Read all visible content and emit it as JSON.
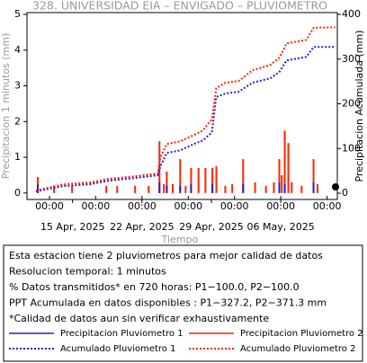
{
  "chart_data": {
    "type": "combo",
    "title": "328. UNIVERSIDAD EIA – ENVIGADO – PLUVIOMETRO",
    "xlabel": "Tiempo",
    "ylabel": "Precipitacion 1 minutos (mm)",
    "y2label": "Precipitacion Acumulada (mm)",
    "xlim": [
      10.4,
      41.7
    ],
    "ylim": [
      -0.18,
      5.05
    ],
    "y2lim": [
      -14,
      404
    ],
    "yticks": [
      0,
      1,
      2,
      3,
      4,
      5
    ],
    "y2ticks": [
      0,
      100,
      200,
      300,
      400
    ],
    "xticks": [
      {
        "value": 12.67,
        "label": "00:00"
      },
      {
        "value": 17.33,
        "label": "00:00"
      },
      {
        "value": 22,
        "label": "00:00"
      },
      {
        "value": 26.67,
        "label": "00:00"
      },
      {
        "value": 31.33,
        "label": "00:00"
      },
      {
        "value": 36,
        "label": "00:00"
      },
      {
        "value": 40.67,
        "label": "00:00"
      }
    ],
    "xticks_major": [
      {
        "value": 15,
        "label": "15 Apr, 2025"
      },
      {
        "value": 22,
        "label": "22 Apr, 2025"
      },
      {
        "value": 29,
        "label": "29 Apr, 2025"
      },
      {
        "value": 36,
        "label": "06 May, 2025"
      }
    ],
    "series": [
      {
        "name": "Precipitacion Pluviometro 2",
        "kind": "bar",
        "color": "#ff2200",
        "x": [
          11.49,
          13.13,
          14.95,
          18.4,
          19.5,
          21.3,
          22.67,
          23.76,
          24.2,
          24.5,
          25.1,
          25.85,
          26.4,
          26.95,
          27.7,
          28.4,
          29.1,
          29.5,
          30.4,
          31.1,
          32.2,
          33.4,
          34.5,
          35.3,
          35.85,
          36.1,
          36.4,
          36.76,
          37.1,
          38.1,
          39.3,
          39.7
        ],
        "values": [
          0.45,
          0.2,
          0.2,
          0.2,
          0.2,
          0.2,
          0.2,
          1.45,
          0.25,
          0.6,
          0.25,
          0.95,
          0.2,
          0.7,
          0.7,
          0.7,
          0.7,
          0.75,
          0.2,
          0.25,
          0.95,
          0.3,
          0.2,
          0.3,
          0.95,
          0.5,
          1.75,
          1.4,
          0.3,
          0.2,
          0.95,
          0.25
        ]
      },
      {
        "name": "Precipitacion Pluviometro 1",
        "kind": "bar",
        "color": "#2020cc",
        "x": [
          11.49,
          23.76,
          24.5,
          25.85,
          26.95,
          29.1,
          32.2,
          35.85,
          36.4,
          39.3
        ],
        "values": [
          0.25,
          0.3,
          0.2,
          0.2,
          0.25,
          0.25,
          0.25,
          0.3,
          0.25,
          0.3
        ]
      },
      {
        "name": "Acumulado Pluviometro 1",
        "kind": "line",
        "axis": "y2",
        "color": "#2020dd",
        "x": [
          11.31,
          14.04,
          16.76,
          18.58,
          21.31,
          23.58,
          23.85,
          24.49,
          25.85,
          27.22,
          28.13,
          29.04,
          29.49,
          30.4,
          31.76,
          33.13,
          34.95,
          35.85,
          36.58,
          38.58,
          39.31,
          41.49
        ],
        "values": [
          4,
          16,
          20,
          28,
          34,
          40,
          60,
          90,
          96,
          110,
          118,
          136,
          215,
          223,
          227,
          247,
          257,
          271,
          297,
          305,
          327,
          327.2
        ]
      },
      {
        "name": "Acumulado Pluviometro 2",
        "kind": "line",
        "axis": "y2",
        "color": "#ff2200",
        "x": [
          11.31,
          14.04,
          16.76,
          18.58,
          21.31,
          23.58,
          23.85,
          24.49,
          25.85,
          27.22,
          28.13,
          29.04,
          29.49,
          30.4,
          31.76,
          33.13,
          34.95,
          35.85,
          36.58,
          38.58,
          39.31,
          41.49
        ],
        "values": [
          6,
          20,
          24,
          32,
          38,
          44,
          80,
          110,
          116,
          130,
          140,
          165,
          235,
          247,
          251,
          275,
          287,
          303,
          335,
          343,
          370,
          371.3
        ]
      }
    ]
  },
  "notes": [
    "Esta estacion tiene 2 pluviometros para mejor calidad de datos",
    "Resolucion temporal: 1 minutos",
    "% Datos transmitidos* en 720 horas: P1−100.0, P2−100.0",
    "PPT Acumulada en datos disponibles : P1−327.2, P2−371.3 mm",
    "*Calidad de datos aun sin verificar exhaustivamente"
  ]
}
